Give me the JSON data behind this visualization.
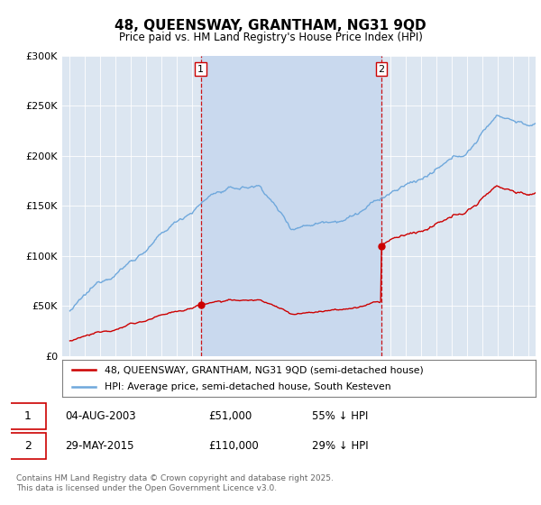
{
  "title": "48, QUEENSWAY, GRANTHAM, NG31 9QD",
  "subtitle": "Price paid vs. HM Land Registry's House Price Index (HPI)",
  "legend_line1": "48, QUEENSWAY, GRANTHAM, NG31 9QD (semi-detached house)",
  "legend_line2": "HPI: Average price, semi-detached house, South Kesteven",
  "footer": "Contains HM Land Registry data © Crown copyright and database right 2025.\nThis data is licensed under the Open Government Licence v3.0.",
  "sale1_label": "1",
  "sale1_date": "04-AUG-2003",
  "sale1_price": "£51,000",
  "sale1_hpi": "55% ↓ HPI",
  "sale2_label": "2",
  "sale2_date": "29-MAY-2015",
  "sale2_price": "£110,000",
  "sale2_hpi": "29% ↓ HPI",
  "hpi_color": "#6fa8dc",
  "price_color": "#cc0000",
  "dashed_color": "#cc0000",
  "background_color": "#dce6f1",
  "plot_bg": "#dce6f1",
  "highlight_color": "#c9d9ee",
  "ylim": [
    0,
    300000
  ],
  "yticks": [
    0,
    50000,
    100000,
    150000,
    200000,
    250000,
    300000
  ],
  "ytick_labels": [
    "£0",
    "£50K",
    "£100K",
    "£150K",
    "£200K",
    "£250K",
    "£300K"
  ],
  "sale1_x": 2003.58,
  "sale1_y": 51000,
  "sale2_x": 2015.41,
  "sale2_y": 110000,
  "xmin": 1994.5,
  "xmax": 2025.5
}
